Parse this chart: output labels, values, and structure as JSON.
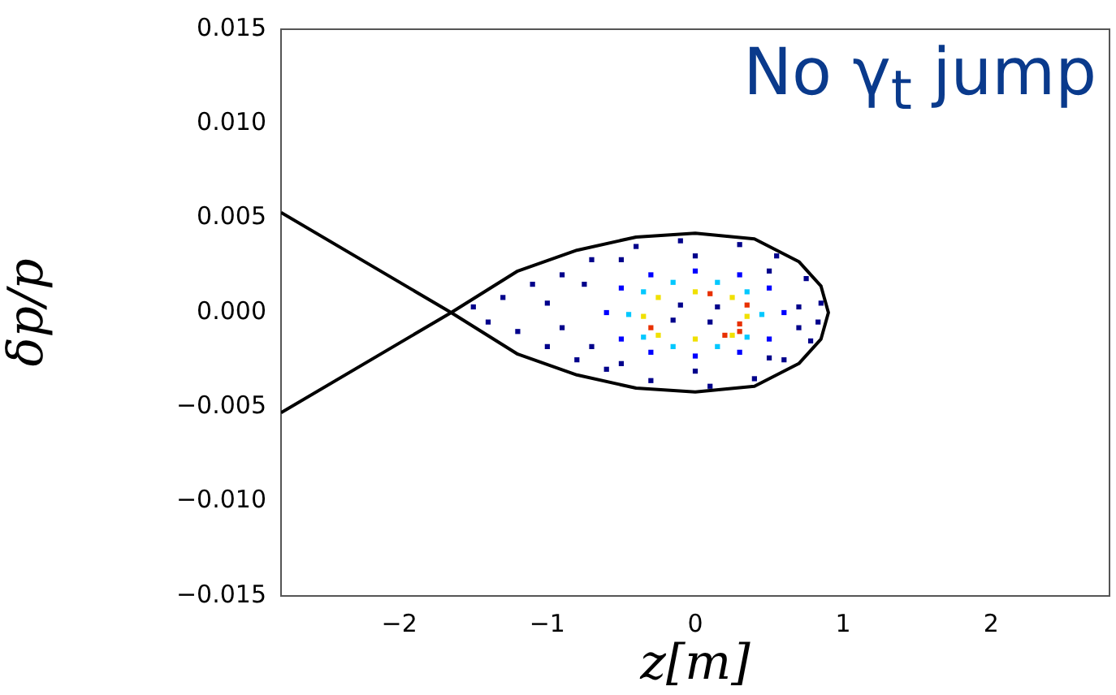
{
  "chart_data": {
    "type": "scatter",
    "xlabel": "z[m]",
    "ylabel": "δp/p",
    "annotations": [
      "No γ$_{t}$ jump"
    ],
    "xlim": [
      -2.8,
      2.8
    ],
    "ylim": [
      -0.015,
      0.015
    ],
    "xticks": [
      {
        "value": -2,
        "label": "−2"
      },
      {
        "value": -1,
        "label": "−1"
      },
      0,
      1,
      2
    ],
    "yticks": [
      {
        "value": -0.015,
        "label": "−0.015"
      },
      {
        "value": -0.01,
        "label": "−0.010"
      },
      {
        "value": -0.005,
        "label": "−0.005"
      },
      {
        "value": 0,
        "label": "0.000"
      },
      0.005,
      {
        "value": 0.01,
        "label": "0.010"
      },
      0.015
    ],
    "grid": false,
    "legend": false,
    "series": [
      {
        "type": "line",
        "color": "#000000",
        "marker": "none",
        "x": [
          -2.8,
          -1.65,
          -1.2,
          -0.8,
          -0.4,
          0,
          0.4,
          0.7,
          0.85,
          0.9,
          0.85,
          0.7,
          0.4,
          0,
          -0.4,
          -0.8,
          -1.2,
          -1.65,
          -2.8
        ],
        "values": [
          0.0053,
          0,
          -0.0022,
          -0.0033,
          -0.004,
          -0.0042,
          -0.0039,
          -0.0027,
          -0.0014,
          0,
          0.0014,
          0.0027,
          0.0039,
          0.0042,
          0.004,
          0.0033,
          0.0022,
          0,
          -0.0053
        ]
      },
      {
        "type": "scatter",
        "color": "#00008b",
        "marker": "square",
        "x": [
          -1.5,
          -1.4,
          -1.3,
          -1.2,
          -1.1,
          -1.0,
          -0.9,
          -0.8,
          -0.7,
          -0.6,
          -0.4,
          -0.3,
          -0.1,
          0.1,
          0.3,
          0.4,
          0.55,
          0.6,
          0.75,
          0.78,
          0.85,
          0.83,
          -1.0,
          -0.9,
          -0.75,
          -0.7,
          -0.5,
          -0.5,
          0,
          0,
          0.5,
          0.5,
          0.7,
          0.7,
          -0.1,
          0.1,
          0.15,
          -0.15
        ],
        "values": [
          0.0003,
          -0.0005,
          0.0008,
          -0.001,
          0.0015,
          -0.0018,
          0.002,
          -0.0025,
          0.0028,
          -0.003,
          0.0035,
          -0.0036,
          0.0038,
          -0.0039,
          0.0036,
          -0.0035,
          0.003,
          -0.0025,
          0.0018,
          -0.0015,
          0.0005,
          -0.0005,
          0.0005,
          -0.0008,
          0.0015,
          -0.0018,
          0.0028,
          -0.0027,
          0.003,
          -0.0031,
          0.0022,
          -0.0024,
          0.0003,
          -0.0008,
          0.0004,
          -0.0005,
          0.0003,
          -0.0004
        ]
      },
      {
        "type": "scatter",
        "color": "#0000ff",
        "marker": "square",
        "x": [
          -0.6,
          -0.5,
          -0.3,
          0,
          0.3,
          0.5,
          0.6,
          0.5,
          0.3,
          0,
          -0.3,
          -0.5
        ],
        "values": [
          0,
          0.0013,
          0.002,
          0.0022,
          0.002,
          0.0013,
          0,
          -0.0014,
          -0.0021,
          -0.0023,
          -0.0021,
          -0.0014
        ]
      },
      {
        "type": "scatter",
        "color": "#00c8ff",
        "marker": "square",
        "x": [
          -0.45,
          -0.35,
          -0.15,
          0.15,
          0.35,
          0.45,
          0.35,
          0.15,
          -0.15,
          -0.35
        ],
        "values": [
          -0.0001,
          0.0011,
          0.0016,
          0.0016,
          0.0011,
          -0.0001,
          -0.0013,
          -0.0018,
          -0.0018,
          -0.0013
        ]
      },
      {
        "type": "scatter",
        "color": "#f0e000",
        "marker": "square",
        "x": [
          -0.35,
          -0.25,
          0,
          0.25,
          0.35,
          0.25,
          0,
          -0.25
        ],
        "values": [
          -0.0002,
          0.0008,
          0.0011,
          0.0008,
          -0.0002,
          -0.0012,
          -0.0014,
          -0.0012
        ]
      },
      {
        "type": "scatter",
        "color": "#e83000",
        "marker": "square",
        "x": [
          0.3,
          0.35,
          0.2,
          0.1,
          -0.3,
          0.3
        ],
        "values": [
          -0.0006,
          0.0004,
          -0.0012,
          0.001,
          -0.0008,
          -0.001
        ]
      }
    ]
  }
}
